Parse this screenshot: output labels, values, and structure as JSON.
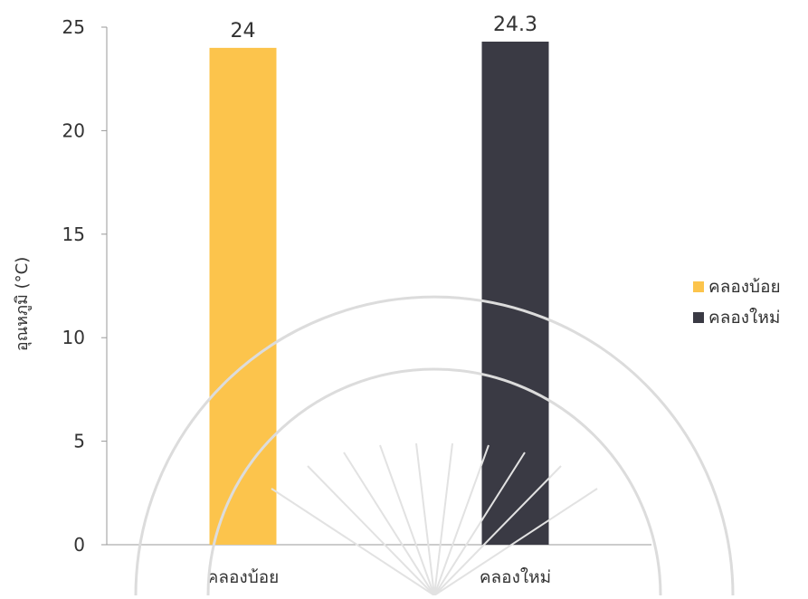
{
  "chart_data": {
    "type": "bar",
    "categories": [
      "คลองบ้อย",
      "คลองใหม่"
    ],
    "values": [
      24,
      24.3
    ],
    "data_labels": [
      "24",
      "24.3"
    ],
    "series": [
      {
        "name": "คลองบ้อย",
        "values": [
          24,
          null
        ],
        "color": "#FCC44C"
      },
      {
        "name": "คลองใหม่",
        "values": [
          null,
          24.3
        ],
        "color": "#3A3A44"
      }
    ],
    "title": "",
    "xlabel": "",
    "ylabel": "อุณหภูมิ (°C)",
    "ylim": [
      0,
      25
    ],
    "yticks": [
      "0",
      "5",
      "10",
      "15",
      "20",
      "25"
    ],
    "grid": false,
    "legend_position": "right"
  },
  "legend": {
    "items": [
      {
        "label": "คลองบ้อย",
        "color": "#FCC44C",
        "icon": "square-swatch"
      },
      {
        "label": "คลองใหม่",
        "color": "#3A3A44",
        "icon": "square-swatch"
      }
    ]
  },
  "colors": {
    "axis": "#999999",
    "text": "#333333",
    "watermark": "#d8d8d8"
  }
}
